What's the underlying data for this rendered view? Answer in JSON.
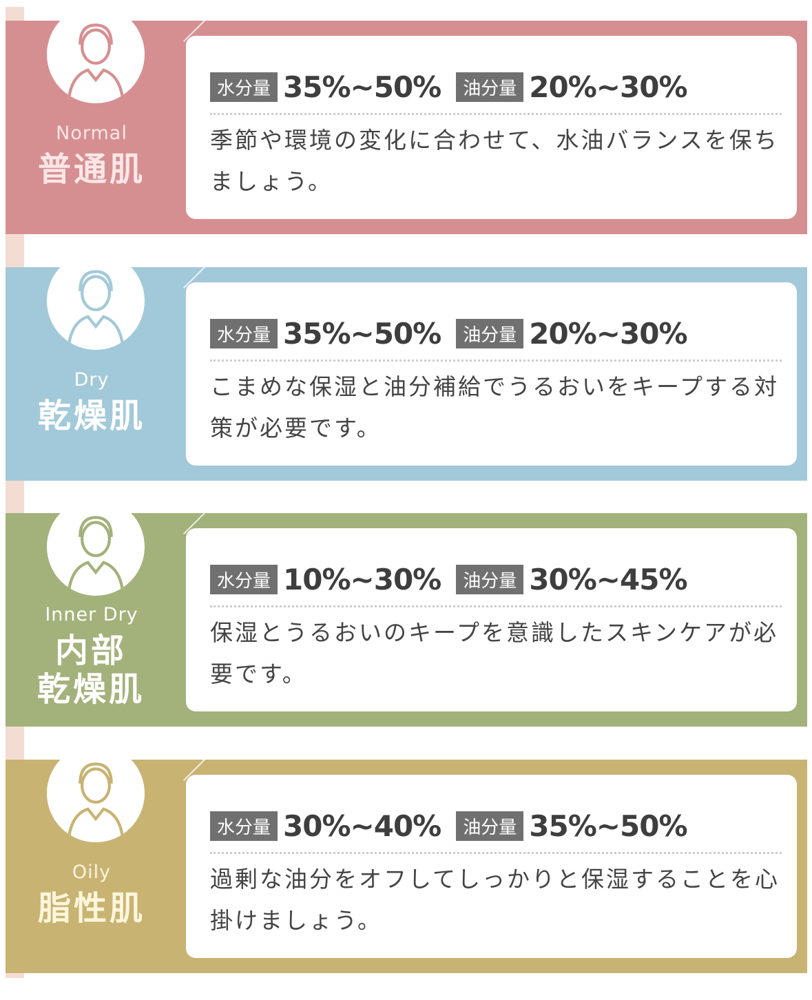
{
  "labels": {
    "water": "水分量",
    "oil": "油分量"
  },
  "types": [
    {
      "en": "Normal",
      "jp": "普通肌",
      "water": "35%~50%",
      "oil": "20%~30%",
      "desc": "季節や環境の変化に合わせて、水油バランスを保ちましょう。",
      "color": "#d68f91",
      "text_color": "#fbe6e6",
      "icon": "woman-ponytail-icon"
    },
    {
      "en": "Dry",
      "jp": "乾燥肌",
      "water": "35%~50%",
      "oil": "20%~30%",
      "desc": "こまめな保湿と油分補給でうるおいをキープする対策が必要です。",
      "color": "#a2c9d9",
      "text_color": "#ffffff",
      "icon": "woman-short-hair-icon"
    },
    {
      "en": "Inner Dry",
      "jp": "内部乾燥肌",
      "water": "10%~30%",
      "oil": "30%~45%",
      "desc": "保湿とうるおいのキープを意識したスキンケアが必要です。",
      "color": "#a3b17b",
      "text_color": "#ffffff",
      "icon": "woman-long-hair-icon"
    },
    {
      "en": "Oily",
      "jp": "脂性肌",
      "water": "30%~40%",
      "oil": "35%~50%",
      "desc": "過剰な油分をオフしてしっかりと保湿することを心掛けましょう。",
      "color": "#c8b373",
      "text_color": "#fdf6dc",
      "icon": "woman-bob-hair-icon"
    }
  ]
}
